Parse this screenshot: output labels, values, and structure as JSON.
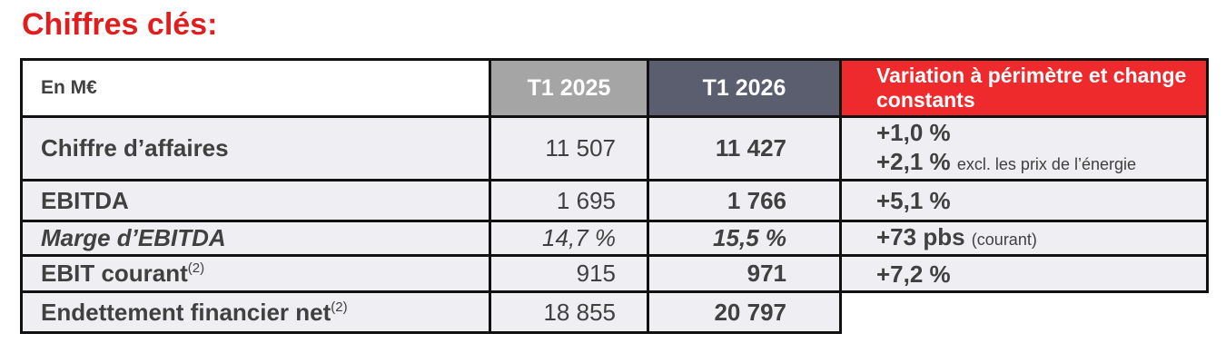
{
  "header": {
    "title": "Chiffres clés:"
  },
  "table": {
    "columns": [
      "En M€",
      "T1 2025",
      "T1 2026",
      "Variation à périmètre et change constants"
    ],
    "rows": [
      {
        "label": "Chiffre d’affaires",
        "values": [
          "11 507",
          "11 427"
        ],
        "variation": [
          {
            "value": "+1,0 %"
          },
          {
            "value": "+2,1 %",
            "note": "excl. les prix de l’énergie"
          }
        ]
      },
      {
        "label": "EBITDA",
        "values": [
          "1 695",
          "1 766"
        ],
        "variation": [
          {
            "value": "+5,1 %"
          }
        ]
      },
      {
        "label": "Marge d’EBITDA",
        "values": [
          "14,7 %",
          "15,5 %"
        ],
        "variation": [
          {
            "value": "+73 pbs",
            "note": "(courant)"
          }
        ]
      },
      {
        "label": "EBIT courant",
        "sup": "(2)",
        "values": [
          "915",
          "971"
        ],
        "variation": [
          {
            "value": "+7,2 %"
          }
        ]
      },
      {
        "label": "Endettement financier net",
        "sup": "(2)",
        "values": [
          "18 855",
          "20 797"
        ]
      }
    ]
  }
}
